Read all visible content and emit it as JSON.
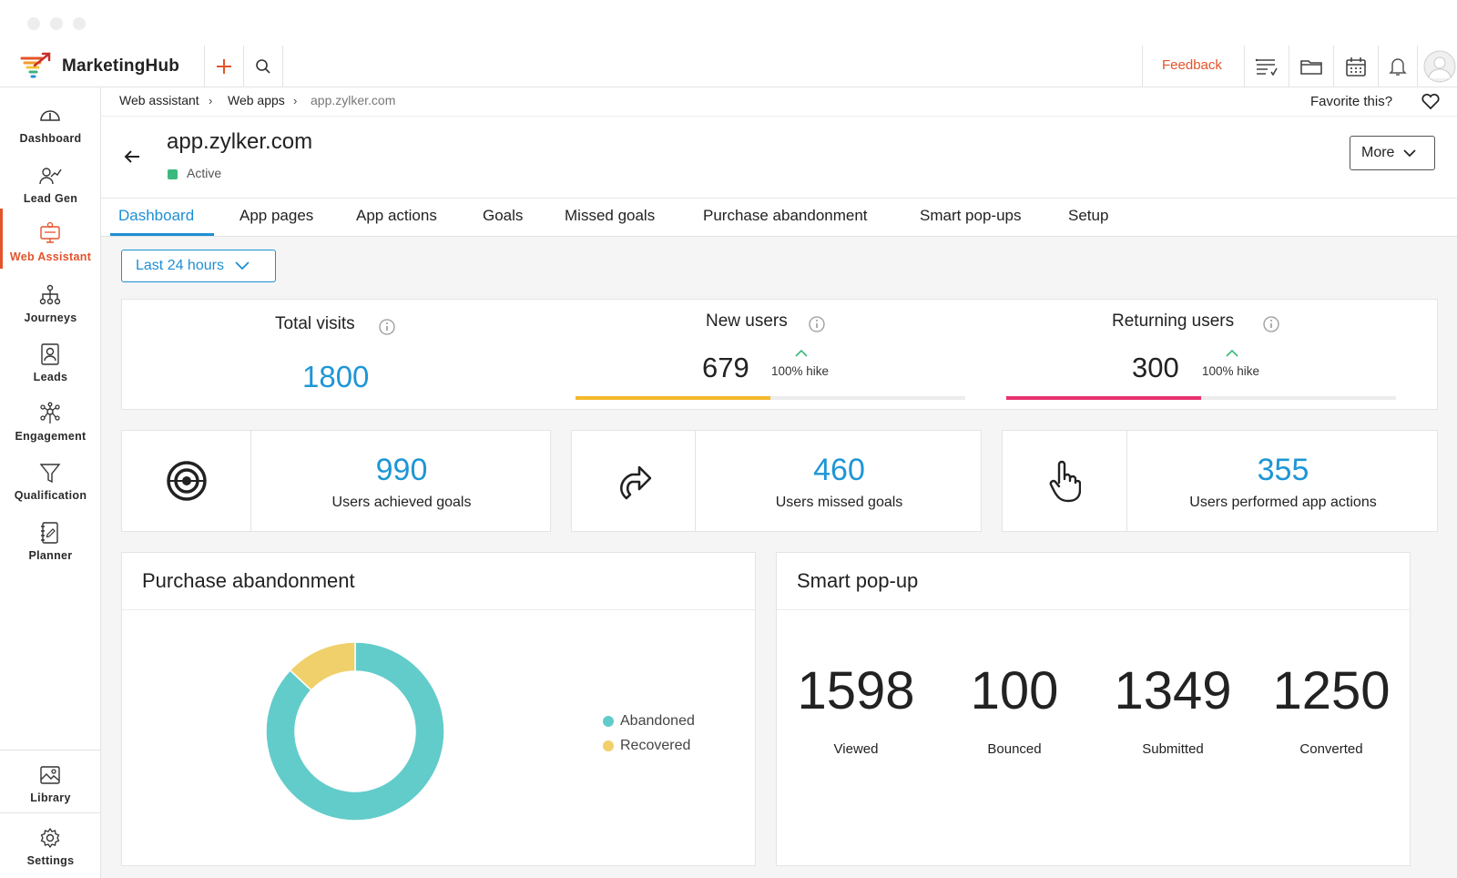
{
  "app": {
    "brand": "MarketingHub",
    "feedback": "Feedback"
  },
  "sidebar": {
    "items": [
      {
        "label": "Dashboard",
        "icon": "gauge-icon"
      },
      {
        "label": "Lead Gen",
        "icon": "lead-gen-icon"
      },
      {
        "label": "Web Assistant",
        "icon": "web-assistant-icon"
      },
      {
        "label": "Journeys",
        "icon": "journeys-icon"
      },
      {
        "label": "Leads",
        "icon": "leads-icon"
      },
      {
        "label": "Engagement",
        "icon": "engagement-icon"
      },
      {
        "label": "Qualification",
        "icon": "funnel-icon"
      },
      {
        "label": "Planner",
        "icon": "planner-icon"
      }
    ],
    "bottom": [
      {
        "label": "Library",
        "icon": "image-icon"
      },
      {
        "label": "Settings",
        "icon": "gear-icon"
      }
    ]
  },
  "breadcrumb": [
    "Web assistant",
    "Web apps",
    "app.zylker.com"
  ],
  "favorite_label": "Favorite this?",
  "header": {
    "title": "app.zylker.com",
    "status": "Active",
    "more_label": "More"
  },
  "tabs": [
    "Dashboard",
    "App pages",
    "App actions",
    "Goals",
    "Missed goals",
    "Purchase abandonment",
    "Smart pop-ups",
    "Setup"
  ],
  "range": {
    "label": "Last 24 hours"
  },
  "summary": {
    "total_visits": {
      "label": "Total visits",
      "value": "1800"
    },
    "new_users": {
      "label": "New users",
      "value": "679",
      "hike": "100% hike",
      "progress": 0.5
    },
    "returning_users": {
      "label": "Returning users",
      "value": "300",
      "hike": "100% hike",
      "progress": 0.5
    }
  },
  "metrics": [
    {
      "value": "990",
      "label": "Users achieved goals",
      "icon": "target-icon"
    },
    {
      "value": "460",
      "label": "Users missed goals",
      "icon": "redirect-arrow-icon"
    },
    {
      "value": "355",
      "label": "Users performed app actions",
      "icon": "hand-pointer-icon"
    }
  ],
  "purchase_abandonment": {
    "title": "Purchase abandonment",
    "legend": [
      {
        "label": "Abandoned",
        "color": "#62ccca"
      },
      {
        "label": "Recovered",
        "color": "#f0d06a"
      }
    ]
  },
  "smart_popup": {
    "title": "Smart pop-up",
    "stats": [
      {
        "value": "1598",
        "label": "Viewed"
      },
      {
        "value": "100",
        "label": "Bounced"
      },
      {
        "value": "1349",
        "label": "Submitted"
      },
      {
        "value": "1250",
        "label": "Converted"
      }
    ]
  },
  "colors": {
    "accent": "#1e96d6",
    "brand": "#e4532a",
    "new_users_bar": "#f4b92b",
    "returning_users_bar": "#e8326f"
  },
  "chart_data": {
    "type": "pie",
    "categories": [
      "Abandoned",
      "Recovered"
    ],
    "values": [
      87,
      13
    ]
  }
}
